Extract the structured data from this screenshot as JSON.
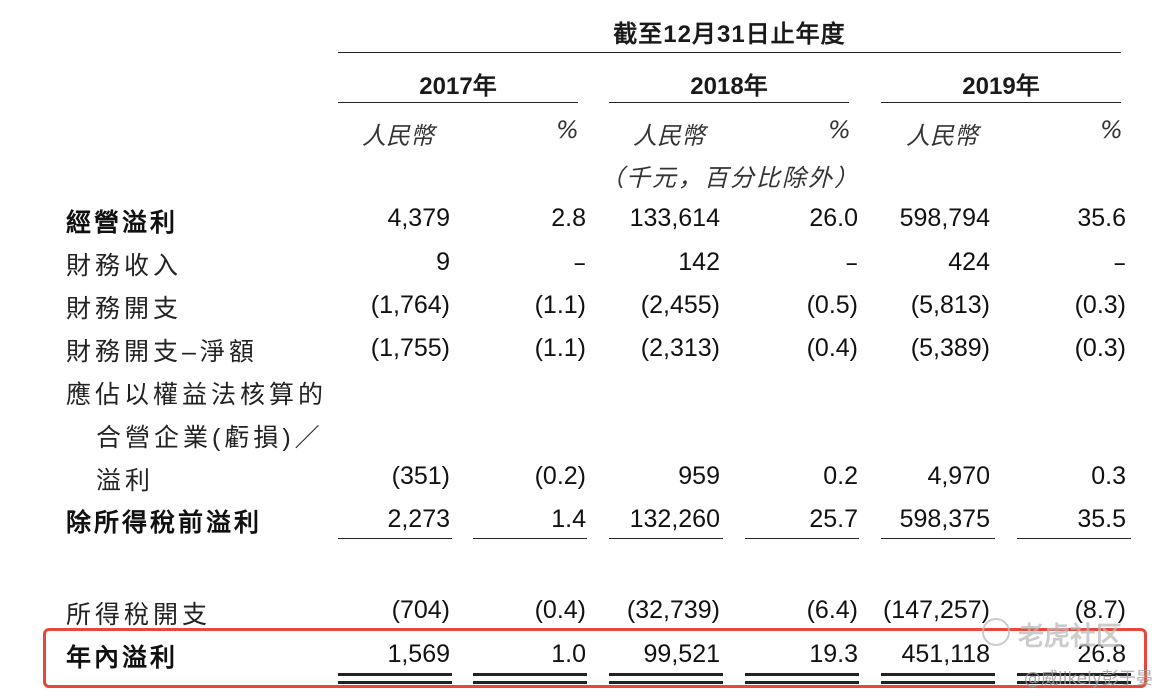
{
  "header": {
    "period": "截至12月31日止年度",
    "years": [
      "2017年",
      "2018年",
      "2019年"
    ],
    "currency_label": "人民幣",
    "percent_label": "%",
    "unit_note": "（千元，百分比除外）"
  },
  "rows": [
    {
      "label": "經營溢利",
      "bold": true,
      "values": [
        "4,379",
        "2.8",
        "133,614",
        "26.0",
        "598,794",
        "35.6"
      ]
    },
    {
      "label": "財務收入",
      "bold": false,
      "values": [
        "9",
        "–",
        "142",
        "–",
        "424",
        "–"
      ]
    },
    {
      "label": "財務開支",
      "bold": false,
      "values": [
        "(1,764)",
        "(1.1)",
        "(2,455)",
        "(0.5)",
        "(5,813)",
        "(0.3)"
      ]
    },
    {
      "label": "財務開支–淨額",
      "bold": false,
      "values": [
        "(1,755)",
        "(1.1)",
        "(2,313)",
        "(0.4)",
        "(5,389)",
        "(0.3)"
      ]
    },
    {
      "label_lines": [
        "應佔以權益法核算的",
        "合營企業(虧損)／",
        "溢利"
      ],
      "bold": false,
      "values": [
        "(351)",
        "(0.2)",
        "959",
        "0.2",
        "4,970",
        "0.3"
      ]
    },
    {
      "label": "除所得稅前溢利",
      "bold": true,
      "values": [
        "2,273",
        "1.4",
        "132,260",
        "25.7",
        "598,375",
        "35.5"
      ]
    },
    {
      "label": "所得稅開支",
      "bold": false,
      "values": [
        "(704)",
        "(0.4)",
        "(32,739)",
        "(6.4)",
        "(147,257)",
        "(8.7)"
      ]
    },
    {
      "label": "年內溢利",
      "bold": true,
      "highlighted": true,
      "values": [
        "1,569",
        "1.0",
        "99,521",
        "19.3",
        "451,118",
        "26.8"
      ]
    }
  ],
  "watermark": {
    "site": "老虎社区",
    "author": "@威likely彭于晏"
  },
  "colors": {
    "highlight_border": "#e8473c",
    "text": "#111111"
  }
}
